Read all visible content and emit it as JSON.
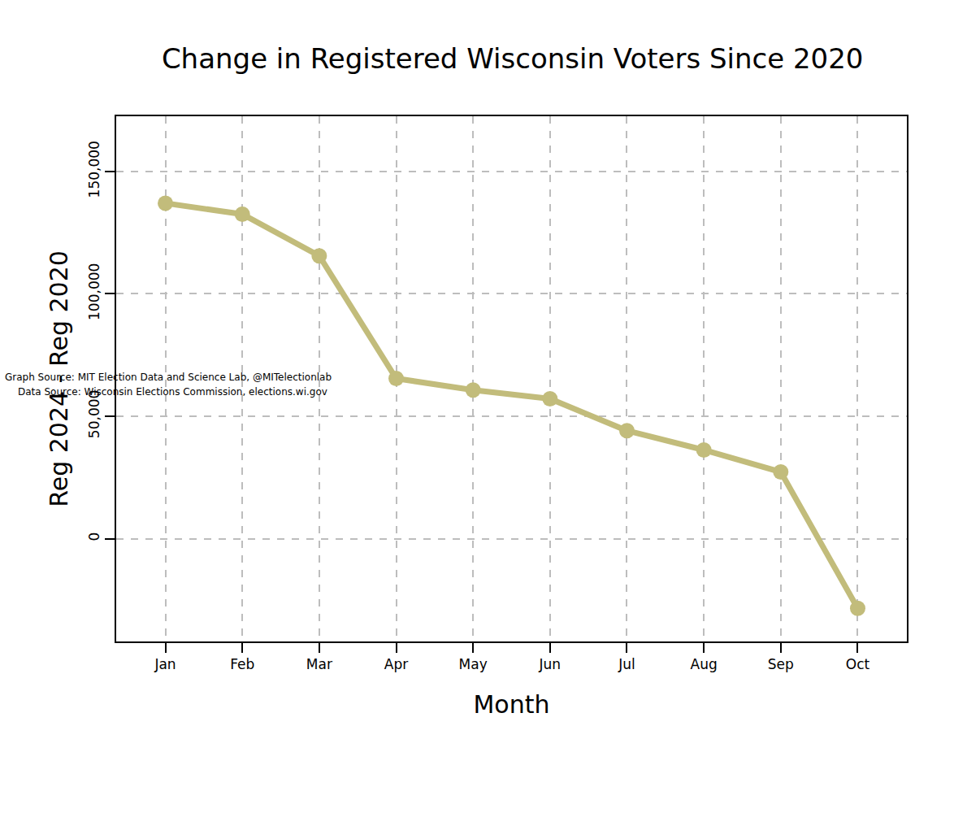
{
  "chart_data": {
    "type": "line",
    "title": "Change in Registered Wisconsin Voters Since 2020",
    "x_label": "Month",
    "y_label": "Reg 2024 - Reg 2020",
    "categories": [
      "Jan",
      "Feb",
      "Mar",
      "Apr",
      "May",
      "Jun",
      "Jul",
      "Aug",
      "Sep",
      "Oct"
    ],
    "values": [
      137000,
      132500,
      115500,
      65400,
      60700,
      57100,
      44100,
      36200,
      27200,
      -28500
    ],
    "color": "#c2bc7b",
    "marker": "circle",
    "line_style": "solid",
    "ylim": [
      -42000,
      172500
    ],
    "yticks": [
      0,
      {
        "value": 50000,
        "label": "50,000"
      },
      {
        "value": 100000,
        "label": "100,000"
      },
      {
        "value": 150000,
        "label": "150,000"
      }
    ],
    "grid": true,
    "notes": [
      "Data Source: Wisconsin Elections Commission, elections.wi.gov",
      "Graph Source: MIT Election Data and Science Lab, @MITelectionlab"
    ]
  }
}
